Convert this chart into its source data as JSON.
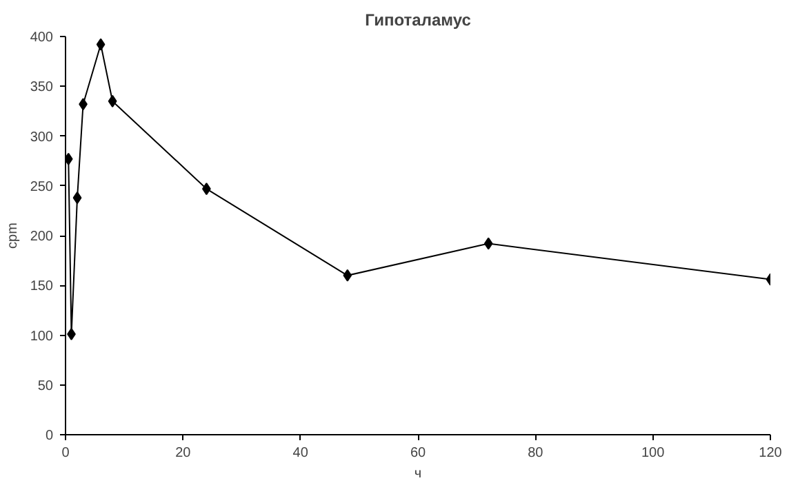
{
  "chart_data": {
    "type": "line",
    "title": "Гипоталамус",
    "xlabel": "ч",
    "ylabel": "cpm",
    "x": [
      0.5,
      1,
      2,
      3,
      6,
      8,
      24,
      48,
      72,
      120
    ],
    "series": [
      {
        "color": "#000000",
        "values": [
          277,
          101,
          238,
          332,
          392,
          335,
          247,
          160,
          192,
          156
        ]
      }
    ],
    "xlim": [
      0,
      120
    ],
    "xticks": [
      0,
      20,
      40,
      60,
      80,
      100,
      120
    ],
    "ylim": [
      0,
      400
    ],
    "yticks": [
      0,
      50,
      100,
      150,
      200,
      250,
      300,
      350,
      400
    ],
    "grid": false,
    "marker": "diamond",
    "line_style": "solid"
  }
}
